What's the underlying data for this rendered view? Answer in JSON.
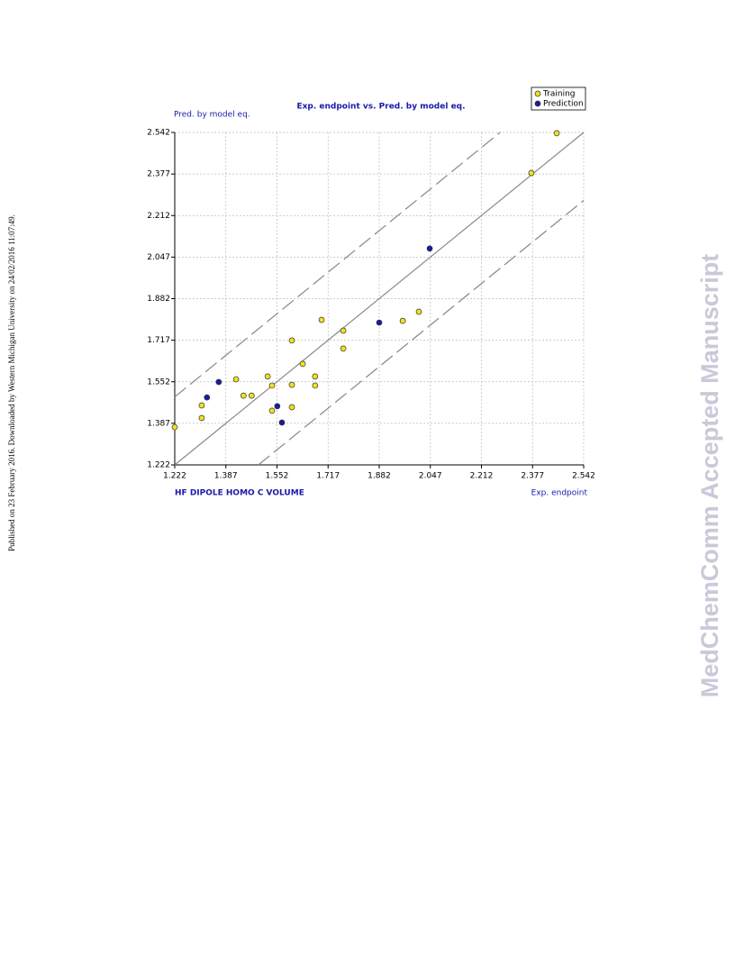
{
  "side_note": "Published on 23 February 2016. Downloaded by Western Michigan University on 24/02/2016 11:07:49.",
  "watermark": "MedChemComm Accepted Manuscript",
  "chart_data": {
    "type": "scatter",
    "title": "Exp. endpoint vs. Pred. by model eq.",
    "y_label": "Pred. by model eq.",
    "x_label": "Exp. endpoint",
    "descriptors": "HF DIPOLE HOMO C VOLUME",
    "xlim": [
      1.222,
      2.542
    ],
    "ylim": [
      1.222,
      2.542
    ],
    "xticks": [
      1.222,
      1.387,
      1.552,
      1.717,
      1.882,
      2.047,
      2.212,
      2.377,
      2.542
    ],
    "yticks": [
      1.222,
      1.387,
      1.552,
      1.717,
      1.882,
      2.047,
      2.212,
      2.377,
      2.542
    ],
    "grid": true,
    "band": 0.27,
    "legend": "top-right",
    "series": [
      {
        "name": "Training",
        "color": "#f0e020",
        "x": [
          1.222,
          1.309,
          1.309,
          1.42,
          1.444,
          1.47,
          1.522,
          1.536,
          1.536,
          1.6,
          1.6,
          1.6,
          1.635,
          1.675,
          1.675,
          1.696,
          1.766,
          1.766,
          1.958,
          2.01,
          2.373,
          2.455
        ],
        "values": [
          1.372,
          1.458,
          1.408,
          1.562,
          1.497,
          1.497,
          1.573,
          1.537,
          1.437,
          1.716,
          1.54,
          1.451,
          1.623,
          1.573,
          1.537,
          1.798,
          1.755,
          1.684,
          1.794,
          1.83,
          2.381,
          2.539
        ]
      },
      {
        "name": "Prediction",
        "color": "#1a1aa8",
        "x": [
          1.326,
          1.364,
          1.553,
          1.568,
          1.882,
          2.045
        ],
        "values": [
          1.49,
          1.551,
          1.455,
          1.39,
          1.787,
          2.081
        ]
      }
    ]
  }
}
